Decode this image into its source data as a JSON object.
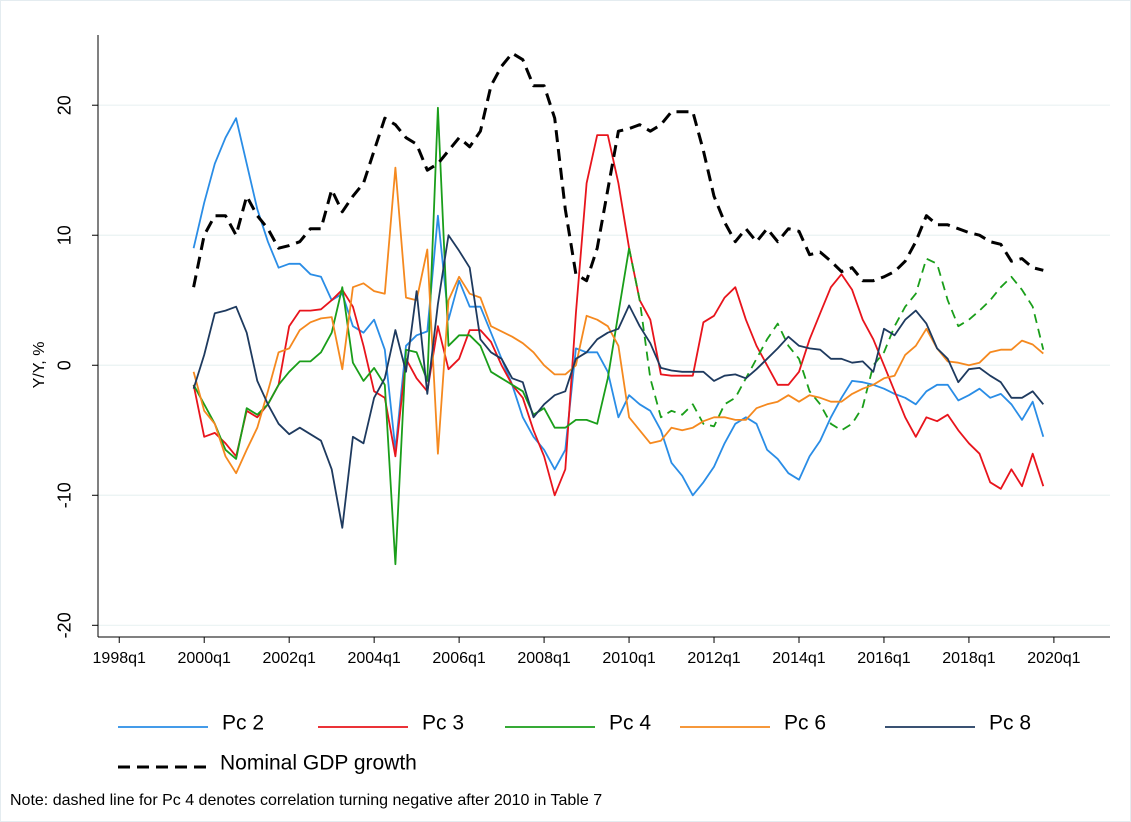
{
  "chart_data": {
    "type": "line",
    "y_label": "Y/Y, %",
    "note": "Note: dashed line for Pc 4 denotes correlation turning negative after 2010 in Table 7",
    "x": [
      "1999q4",
      "2000q1",
      "2000q2",
      "2000q3",
      "2000q4",
      "2001q1",
      "2001q2",
      "2001q3",
      "2001q4",
      "2002q1",
      "2002q2",
      "2002q3",
      "2002q4",
      "2003q1",
      "2003q2",
      "2003q3",
      "2003q4",
      "2004q1",
      "2004q2",
      "2004q3",
      "2004q4",
      "2005q1",
      "2005q2",
      "2005q3",
      "2005q4",
      "2006q1",
      "2006q2",
      "2006q3",
      "2006q4",
      "2007q1",
      "2007q2",
      "2007q3",
      "2007q4",
      "2008q1",
      "2008q2",
      "2008q3",
      "2008q4",
      "2009q1",
      "2009q2",
      "2009q3",
      "2009q4",
      "2010q1",
      "2010q2",
      "2010q3",
      "2010q4",
      "2011q1",
      "2011q2",
      "2011q3",
      "2011q4",
      "2012q1",
      "2012q2",
      "2012q3",
      "2012q4",
      "2013q1",
      "2013q2",
      "2013q3",
      "2013q4",
      "2014q1",
      "2014q2",
      "2014q3",
      "2014q4",
      "2015q1",
      "2015q2",
      "2015q3",
      "2015q4",
      "2016q1",
      "2016q2",
      "2016q3",
      "2016q4",
      "2017q1",
      "2017q2",
      "2017q3",
      "2017q4",
      "2018q1",
      "2018q2",
      "2018q3",
      "2018q4",
      "2019q1",
      "2019q2",
      "2019q3",
      "2019q4"
    ],
    "series": [
      {
        "name": "Pc 2",
        "color": "#2a8de6",
        "values": [
          9,
          12.5,
          15.5,
          17.5,
          19,
          15.5,
          12,
          9.5,
          7.5,
          7.8,
          7.8,
          7,
          6.8,
          5,
          5.5,
          3,
          2.5,
          3.5,
          1.2,
          -6.5,
          1.5,
          2.3,
          2.6,
          11.5,
          3.5,
          6.5,
          4.5,
          4.5,
          2.5,
          0.5,
          -1.5,
          -4,
          -5.5,
          -6.5,
          -8,
          -6.5,
          1.3,
          1,
          1,
          -0.5,
          -4,
          -2.3,
          -3,
          -3.5,
          -5,
          -7.5,
          -8.5,
          -10,
          -9,
          -7.8,
          -6,
          -4.5,
          -4,
          -4.5,
          -6.5,
          -7.2,
          -8.3,
          -8.8,
          -7,
          -5.8,
          -4,
          -2.5,
          -1.2,
          -1.3,
          -1.5,
          -1.8,
          -2.2,
          -2.5,
          -3,
          -2,
          -1.5,
          -1.5,
          -2.7,
          -2.3,
          -1.8,
          -2.5,
          -2.2,
          -3,
          -4.2,
          -2.8,
          -5.5
        ]
      },
      {
        "name": "Pc 3",
        "color": "#e8141c",
        "values": [
          -1.5,
          -5.5,
          -5.2,
          -6,
          -7,
          -3.5,
          -4,
          -3,
          -1.5,
          3,
          4.2,
          4.2,
          4.3,
          5,
          5.8,
          4.5,
          1.5,
          -2,
          -2.5,
          -7,
          0.5,
          -1,
          -2,
          3,
          -0.3,
          0.5,
          2.7,
          2.7,
          1.8,
          0,
          -1.5,
          -2.5,
          -5,
          -7,
          -10,
          -8,
          4,
          14,
          17.7,
          17.7,
          14,
          9,
          5,
          3.5,
          -0.7,
          -0.8,
          -0.8,
          -0.8,
          3.3,
          3.8,
          5.2,
          6,
          3.5,
          1.5,
          0,
          -1.5,
          -1.5,
          -0.5,
          2,
          4,
          6,
          7,
          5.8,
          3.5,
          2,
          0,
          -2,
          -4,
          -5.5,
          -4,
          -4.3,
          -3.8,
          -5,
          -6,
          -6.8,
          -9,
          -9.5,
          -8,
          -9.3,
          -6.8,
          -9.3
        ]
      },
      {
        "name": "Pc 4",
        "color": "#1a9e1a",
        "dash_from": "2010q1",
        "values": [
          -1.5,
          -3,
          -4.5,
          -6.5,
          -7.2,
          -3.3,
          -3.8,
          -3,
          -1.5,
          -0.5,
          0.3,
          0.3,
          1,
          2.5,
          6,
          0.2,
          -1.2,
          -0.2,
          -1.5,
          -15.3,
          1.2,
          1,
          -1.2,
          19.8,
          1.5,
          2.3,
          2.3,
          1.5,
          -0.5,
          -1,
          -1.5,
          -2,
          -3.8,
          -3.3,
          -4.8,
          -4.8,
          -4.2,
          -4.2,
          -4.5,
          -1,
          4,
          9,
          5,
          -1,
          -4,
          -3.5,
          -3.8,
          -3,
          -4.5,
          -4.7,
          -3,
          -2.5,
          -1,
          0.5,
          2,
          3.2,
          1.5,
          0.5,
          -2,
          -3,
          -4.5,
          -5,
          -4.5,
          -3.2,
          0,
          1,
          3,
          4.5,
          5.5,
          8.2,
          7.8,
          5,
          3,
          3.5,
          4.2,
          5,
          6,
          6.8,
          5.8,
          4.5,
          1.2
        ]
      },
      {
        "name": "Pc 6",
        "color": "#f5891f",
        "values": [
          -0.5,
          -3.5,
          -4.5,
          -7,
          -8.3,
          -6.5,
          -4.8,
          -2,
          1,
          1.3,
          2.7,
          3.3,
          3.6,
          3.7,
          -0.3,
          6,
          6.3,
          5.7,
          5.5,
          15.2,
          5.2,
          5,
          8.9,
          -6.8,
          5,
          6.8,
          5.5,
          5.2,
          3,
          2.6,
          2.2,
          1.7,
          1,
          0,
          -0.7,
          -0.7,
          0,
          3.8,
          3.5,
          3,
          1.5,
          -4,
          -5,
          -6,
          -5.8,
          -4.8,
          -5,
          -4.8,
          -4.3,
          -4,
          -4,
          -4.2,
          -4.2,
          -3.3,
          -3,
          -2.8,
          -2.3,
          -2.8,
          -2.3,
          -2.5,
          -2.8,
          -2.8,
          -2.2,
          -1.8,
          -1.5,
          -1,
          -0.8,
          0.8,
          1.5,
          2.8,
          1.3,
          0.3,
          0.2,
          0,
          0.2,
          1,
          1.2,
          1.2,
          1.9,
          1.6,
          0.9
        ]
      },
      {
        "name": "Pc 8",
        "color": "#1e3a5f",
        "values": [
          -1.8,
          0.8,
          4,
          4.2,
          4.5,
          2.5,
          -1.2,
          -3,
          -4.5,
          -5.3,
          -4.8,
          -5.3,
          -5.8,
          -8,
          -12.5,
          -5.5,
          -6,
          -2.5,
          -1,
          2.7,
          -0.5,
          5.7,
          -2.2,
          4.7,
          10,
          8.8,
          7.5,
          2,
          1,
          0.5,
          -1,
          -1.3,
          -4,
          -3,
          -2.3,
          -2,
          0.5,
          1,
          2,
          2.5,
          2.8,
          4.6,
          3,
          1.7,
          -0.2,
          -0.4,
          -0.5,
          -0.5,
          -0.5,
          -1.2,
          -0.8,
          -0.7,
          -1,
          -0.3,
          0.5,
          1.3,
          2.2,
          1.5,
          1.3,
          1.2,
          0.5,
          0.5,
          0.2,
          0.3,
          -0.5,
          2.8,
          2.3,
          3.5,
          4.2,
          3.2,
          1.3,
          0.5,
          -1.3,
          -0.3,
          -0.2,
          -0.8,
          -1.3,
          -2.5,
          -2.5,
          -2,
          -3
        ]
      },
      {
        "name": "Nominal GDP growth",
        "color": "#000000",
        "dashed": true,
        "values": [
          6,
          10,
          11.5,
          11.5,
          10,
          13,
          11.5,
          10.5,
          9,
          9.2,
          9.5,
          10.5,
          10.5,
          13.5,
          11.8,
          13,
          14,
          16.5,
          19,
          18.5,
          17.5,
          17,
          15,
          15.5,
          16.5,
          17.5,
          16.8,
          18,
          21.5,
          23,
          24,
          23.5,
          21.5,
          21.5,
          19,
          12,
          7,
          6.5,
          9,
          13.5,
          18,
          18.2,
          18.5,
          18,
          18.5,
          19.5,
          19.5,
          19.5,
          16.5,
          13,
          11,
          9.5,
          10.5,
          9.5,
          10.5,
          9.5,
          10.5,
          10.3,
          8.5,
          8.7,
          8,
          7.2,
          7.5,
          6.5,
          6.5,
          6.8,
          7.2,
          8,
          9.5,
          11.5,
          10.8,
          10.8,
          10.5,
          10.2,
          10,
          9.5,
          9.3,
          8,
          8.2,
          7.5,
          7.3
        ]
      }
    ],
    "xlim": [
      "1997q3",
      "2021q2"
    ],
    "xticks": [
      "1998q1",
      "2000q1",
      "2002q1",
      "2004q1",
      "2006q1",
      "2008q1",
      "2010q1",
      "2012q1",
      "2014q1",
      "2016q1",
      "2018q1",
      "2020q1"
    ],
    "ylim": [
      -20.9,
      25.4
    ],
    "yticks": [
      -20,
      -10,
      0,
      10,
      20
    ],
    "grid": true
  }
}
